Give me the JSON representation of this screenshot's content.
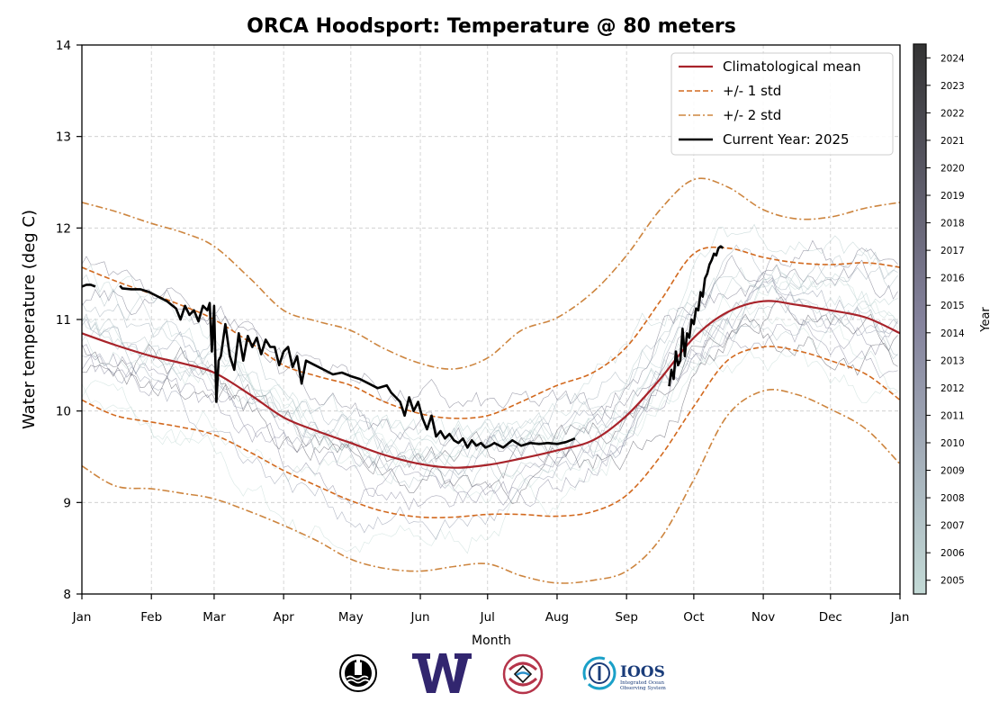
{
  "chart_data": {
    "type": "line",
    "title": "ORCA Hoodsport: Temperature @ 80 meters",
    "xlabel": "Month",
    "ylabel": "Water temperature (deg C)",
    "ylim": [
      8,
      14
    ],
    "xlim_day_of_year": [
      0,
      365
    ],
    "grid": true,
    "yticks": [
      8,
      9,
      10,
      11,
      12,
      13,
      14
    ],
    "xticks": [
      {
        "label": "Jan",
        "day": 0
      },
      {
        "label": "Feb",
        "day": 31
      },
      {
        "label": "Mar",
        "day": 59
      },
      {
        "label": "Apr",
        "day": 90
      },
      {
        "label": "May",
        "day": 120
      },
      {
        "label": "Jun",
        "day": 151
      },
      {
        "label": "Jul",
        "day": 181
      },
      {
        "label": "Aug",
        "day": 212
      },
      {
        "label": "Sep",
        "day": 243
      },
      {
        "label": "Oct",
        "day": 273
      },
      {
        "label": "Nov",
        "day": 304
      },
      {
        "label": "Dec",
        "day": 334
      },
      {
        "label": "Jan",
        "day": 365
      }
    ],
    "legend": {
      "placement": "top-right",
      "entries": [
        {
          "label": "Climatological mean",
          "style": "solid",
          "color": "#a8232a"
        },
        {
          "label": "+/- 1 std",
          "style": "dashed",
          "color": "#d2691e"
        },
        {
          "label": "+/- 2 std",
          "style": "dashdot",
          "color": "#cd853f"
        },
        {
          "label": "Current Year: 2025",
          "style": "solid",
          "color": "#000000"
        }
      ]
    },
    "colorbar": {
      "label": "Year",
      "ticks": [
        2005,
        2006,
        2007,
        2008,
        2009,
        2010,
        2011,
        2012,
        2013,
        2014,
        2015,
        2016,
        2017,
        2018,
        2019,
        2020,
        2021,
        2022,
        2023,
        2024
      ],
      "color_low": "#c3dad6",
      "color_mid": "#7b7a94",
      "color_high": "#333333"
    },
    "x": [
      0,
      15,
      31,
      45,
      59,
      75,
      90,
      105,
      120,
      135,
      151,
      166,
      181,
      196,
      212,
      228,
      243,
      258,
      273,
      288,
      304,
      319,
      334,
      350,
      365
    ],
    "series": [
      {
        "name": "Climatological mean",
        "values": [
          10.85,
          10.72,
          10.6,
          10.52,
          10.42,
          10.18,
          9.93,
          9.78,
          9.65,
          9.52,
          9.42,
          9.38,
          9.41,
          9.48,
          9.57,
          9.68,
          9.95,
          10.35,
          10.8,
          11.08,
          11.2,
          11.16,
          11.1,
          11.02,
          10.85
        ]
      },
      {
        "name": "+1 std",
        "values": [
          11.57,
          11.42,
          11.28,
          11.15,
          11.0,
          10.75,
          10.5,
          10.38,
          10.28,
          10.1,
          9.97,
          9.92,
          9.95,
          10.1,
          10.28,
          10.42,
          10.7,
          11.2,
          11.72,
          11.78,
          11.68,
          11.62,
          11.6,
          11.62,
          11.57
        ]
      },
      {
        "name": "-1 std",
        "values": [
          10.12,
          9.95,
          9.88,
          9.82,
          9.74,
          9.55,
          9.35,
          9.18,
          9.02,
          8.9,
          8.84,
          8.84,
          8.87,
          8.87,
          8.85,
          8.9,
          9.08,
          9.5,
          10.05,
          10.55,
          10.7,
          10.66,
          10.55,
          10.4,
          10.12
        ]
      },
      {
        "name": "+2 std",
        "values": [
          12.28,
          12.18,
          12.05,
          11.95,
          11.8,
          11.45,
          11.1,
          10.98,
          10.88,
          10.68,
          10.52,
          10.46,
          10.58,
          10.88,
          11.02,
          11.3,
          11.7,
          12.2,
          12.53,
          12.45,
          12.2,
          12.1,
          12.12,
          12.22,
          12.28
        ]
      },
      {
        "name": "-2 std",
        "values": [
          9.4,
          9.18,
          9.15,
          9.1,
          9.04,
          8.9,
          8.75,
          8.58,
          8.38,
          8.28,
          8.25,
          8.3,
          8.33,
          8.2,
          8.12,
          8.15,
          8.25,
          8.6,
          9.25,
          9.95,
          10.22,
          10.18,
          10.02,
          9.8,
          9.42
        ]
      },
      {
        "name": "Current Year: 2025",
        "x": [
          0,
          2,
          4,
          6,
          8,
          17,
          18,
          22,
          26,
          30,
          34,
          38,
          42,
          44,
          46,
          48,
          50,
          52,
          54,
          56,
          57,
          58,
          59,
          60,
          61,
          62,
          64,
          66,
          68,
          70,
          72,
          74,
          76,
          78,
          80,
          82,
          84,
          86,
          88,
          90,
          92,
          94,
          96,
          98,
          100,
          104,
          108,
          112,
          116,
          120,
          124,
          128,
          132,
          136,
          138,
          140,
          142,
          144,
          146,
          148,
          150,
          152,
          154,
          156,
          158,
          160,
          162,
          164,
          166,
          168,
          170,
          172,
          174,
          176,
          178,
          180,
          182,
          184,
          188,
          192,
          196,
          200,
          204,
          208,
          212,
          216,
          220,
          262,
          263,
          264,
          265,
          266,
          267,
          268,
          269,
          270,
          271,
          272,
          273,
          274,
          275,
          276,
          277,
          278,
          279,
          280,
          281,
          282,
          283,
          284,
          285,
          286
        ],
        "values": [
          11.36,
          11.38,
          11.38,
          11.36,
          null,
          11.37,
          11.34,
          11.33,
          11.33,
          11.3,
          11.25,
          11.2,
          11.12,
          11.0,
          11.15,
          11.05,
          11.1,
          10.98,
          11.15,
          11.1,
          11.18,
          10.65,
          11.15,
          10.1,
          10.55,
          10.6,
          10.95,
          10.6,
          10.45,
          10.85,
          10.55,
          10.82,
          10.7,
          10.8,
          10.62,
          10.78,
          10.7,
          10.7,
          10.5,
          10.65,
          10.7,
          10.48,
          10.6,
          10.3,
          10.55,
          10.5,
          10.45,
          10.4,
          10.42,
          10.38,
          10.35,
          10.3,
          10.25,
          10.28,
          10.2,
          10.15,
          10.1,
          9.95,
          10.15,
          10.0,
          10.1,
          9.92,
          9.8,
          9.95,
          9.72,
          9.78,
          9.7,
          9.75,
          9.68,
          9.65,
          9.7,
          9.6,
          9.68,
          9.62,
          9.65,
          9.6,
          9.62,
          9.65,
          9.6,
          9.68,
          9.62,
          9.65,
          9.64,
          9.65,
          9.64,
          9.66,
          9.7,
          10.27,
          10.45,
          10.35,
          10.65,
          10.5,
          10.55,
          10.9,
          10.6,
          10.85,
          10.8,
          11.0,
          10.95,
          11.12,
          11.1,
          11.3,
          11.25,
          11.45,
          11.5,
          11.6,
          11.65,
          11.72,
          11.7,
          11.78,
          11.8,
          11.78
        ]
      }
    ]
  },
  "logos": [
    {
      "name": "buoy-seal-logo"
    },
    {
      "name": "uw-w-logo",
      "text": "W",
      "color": "#32266f"
    },
    {
      "name": "tribal-formline-logo"
    },
    {
      "name": "ioos-logo",
      "text": "IOOS",
      "subtext1": "Integrated Ocean",
      "subtext2": "Observing System",
      "color": "#1a3c7a"
    }
  ]
}
